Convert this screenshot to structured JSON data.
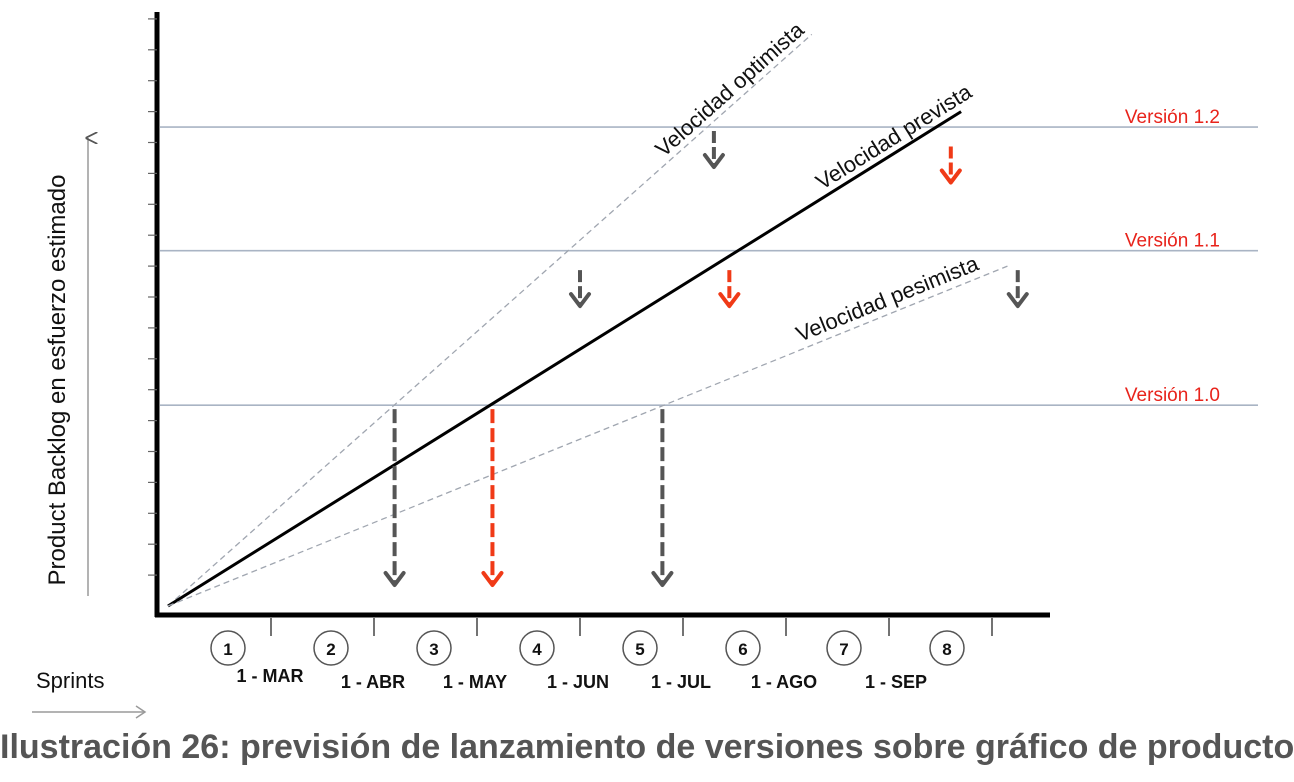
{
  "chart_data": {
    "type": "line",
    "ylabel": "Product Backlog en esfuerzo estimado",
    "xlabel": "Sprints",
    "sprints": [
      "1",
      "2",
      "3",
      "4",
      "5",
      "6",
      "7",
      "8"
    ],
    "dates": [
      "1 - MAR",
      "1 - ABR",
      "1 - MAY",
      "1 - JUN",
      "1 - JUL",
      "1 - AGO",
      "1 - SEP"
    ],
    "xlim": [
      0,
      8.5
    ],
    "ylim": [
      0,
      19.5
    ],
    "versions": [
      {
        "name": "Versión 1.0",
        "y": 6.5
      },
      {
        "name": "Versión 1.1",
        "y": 11.5
      },
      {
        "name": "Versión 1.2",
        "y": 15.5
      }
    ],
    "series": [
      {
        "name": "Velocidad optimista",
        "style": "dashed",
        "x": [
          0,
          6.25
        ],
        "y": [
          0,
          18.5
        ]
      },
      {
        "name": "Velocidad prevista",
        "style": "solid",
        "x": [
          0,
          7.7
        ],
        "y": [
          0,
          16.0
        ]
      },
      {
        "name": "Velocidad pesimista",
        "style": "dashed",
        "x": [
          0,
          8.15
        ],
        "y": [
          0,
          11.0
        ]
      }
    ],
    "release_arrows": [
      {
        "x": 2.2,
        "y": 6.5,
        "color": "#555555",
        "kind": "long"
      },
      {
        "x": 3.15,
        "y": 6.5,
        "color": "#f03a17",
        "kind": "long"
      },
      {
        "x": 4.8,
        "y": 6.5,
        "color": "#555555",
        "kind": "long"
      },
      {
        "x": 4.0,
        "y": 11.0,
        "color": "#555555",
        "kind": "short"
      },
      {
        "x": 5.45,
        "y": 11.0,
        "color": "#f03a17",
        "kind": "short"
      },
      {
        "x": 8.25,
        "y": 11.0,
        "color": "#555555",
        "kind": "short"
      },
      {
        "x": 5.3,
        "y": 15.5,
        "color": "#555555",
        "kind": "short"
      },
      {
        "x": 7.6,
        "y": 15.0,
        "color": "#f03a17",
        "kind": "short"
      }
    ],
    "colors": {
      "version_line": "#a9b4c4",
      "version_label": "#e8231b",
      "red_arrow": "#f03a17",
      "gray_arrow": "#555555",
      "guide": "#9a9a9a"
    }
  },
  "caption": "Ilustración 26: previsión de lanzamiento de versiones sobre gráfico de producto"
}
